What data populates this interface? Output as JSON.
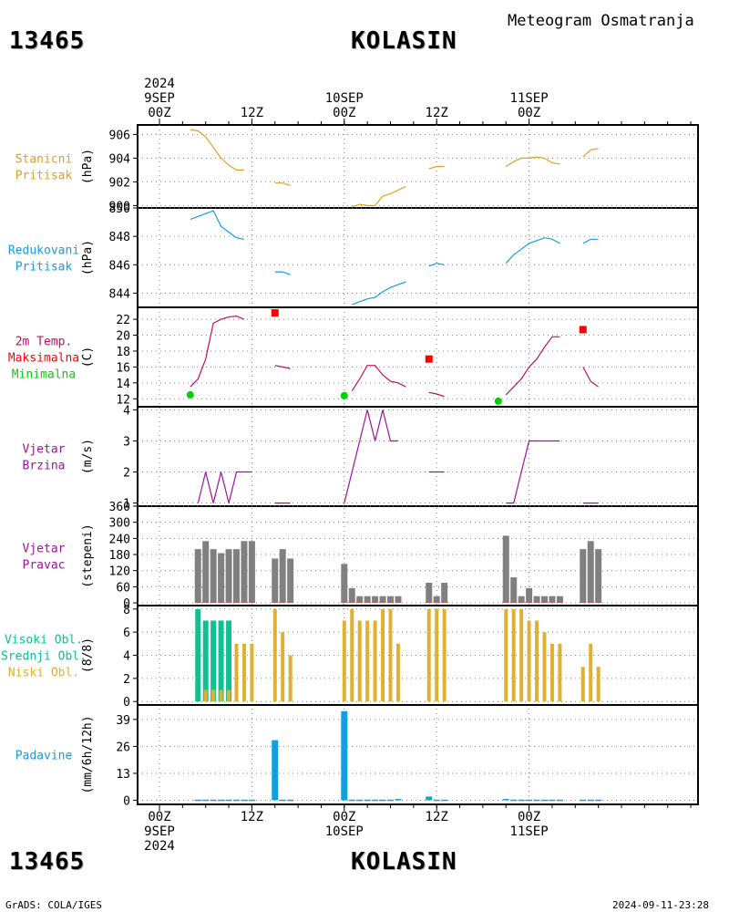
{
  "header": {
    "station_id": "13465",
    "station_name": "KOLASIN",
    "product_title": "Meteogram Osmatranja"
  },
  "footer": {
    "station_id": "13465",
    "station_name": "KOLASIN",
    "credit": "GrADS: COLA/IGES",
    "timestamp": "2024-09-11-23:28"
  },
  "time_axis": {
    "top_year": "2024",
    "bottom_year": "2024",
    "day_labels": [
      "9SEP",
      "10SEP",
      "11SEP"
    ],
    "tick_labels": [
      "00Z",
      "12Z",
      "00Z",
      "12Z",
      "00Z",
      "12Z"
    ]
  },
  "colors": {
    "pressure_station": "#e0a020",
    "pressure_reduced": "#10a0e0",
    "temp_line": "#c0105a",
    "temp_max": "#ff0000",
    "temp_min": "#00d000",
    "wind": "#a010a0",
    "wind_dir_bar": "#808080",
    "wind_dir_base": "#e05050",
    "cloud_high": "#10c090",
    "cloud_mid": "#40c040",
    "cloud_low": "#e0b030",
    "precip": "#10a0e0"
  },
  "chart_data": [
    {
      "type": "line",
      "id": "station_pressure",
      "legend": [
        "Stanicni",
        "Pritisak"
      ],
      "ylabel": "(hPa)",
      "ylim": [
        899.8,
        906.8
      ],
      "yticks": [
        900,
        902,
        904,
        906
      ],
      "x_unit": "hours_since_2024-09-09T00Z",
      "segments": [
        [
          [
            4,
            906.4
          ],
          [
            5,
            906.3
          ],
          [
            6,
            905.8
          ],
          [
            7,
            904.9
          ],
          [
            8,
            904.0
          ],
          [
            9,
            903.4
          ],
          [
            10,
            903.0
          ],
          [
            11,
            903.0
          ]
        ],
        [
          [
            15,
            901.9
          ],
          [
            16,
            901.9
          ],
          [
            17,
            901.7
          ]
        ],
        [
          [
            25,
            899.9
          ],
          [
            26,
            900.1
          ],
          [
            27,
            900.0
          ],
          [
            28,
            900.0
          ],
          [
            29,
            900.8
          ],
          [
            30,
            901.0
          ],
          [
            31,
            901.3
          ],
          [
            32,
            901.6
          ]
        ],
        [
          [
            35,
            903.1
          ],
          [
            36,
            903.3
          ],
          [
            37,
            903.3
          ]
        ],
        [
          [
            45,
            903.3
          ],
          [
            46,
            903.7
          ],
          [
            47,
            904.0
          ],
          [
            48,
            904.0
          ],
          [
            49,
            904.1
          ],
          [
            50,
            904.0
          ],
          [
            51,
            903.6
          ],
          [
            52,
            903.5
          ]
        ],
        [
          [
            55,
            904.1
          ],
          [
            56,
            904.7
          ],
          [
            57,
            904.8
          ]
        ]
      ]
    },
    {
      "type": "line",
      "id": "reduced_pressure",
      "legend": [
        "Redukovani",
        "Pritisak"
      ],
      "ylabel": "(hPa)",
      "ylim": [
        843.0,
        850.0
      ],
      "yticks": [
        844,
        846,
        848,
        850
      ],
      "x_unit": "hours_since_2024-09-09T00Z",
      "segments": [
        [
          [
            4,
            849.2
          ],
          [
            5,
            849.4
          ],
          [
            6,
            849.6
          ],
          [
            7,
            849.8
          ],
          [
            8,
            848.7
          ],
          [
            9,
            848.3
          ],
          [
            10,
            847.9
          ],
          [
            11,
            847.8
          ]
        ],
        [
          [
            15,
            845.5
          ],
          [
            16,
            845.5
          ],
          [
            17,
            845.3
          ]
        ],
        [
          [
            25,
            843.2
          ],
          [
            26,
            843.4
          ],
          [
            27,
            843.6
          ],
          [
            28,
            843.7
          ],
          [
            29,
            844.1
          ],
          [
            30,
            844.4
          ],
          [
            31,
            844.6
          ],
          [
            32,
            844.8
          ]
        ],
        [
          [
            35,
            845.9
          ],
          [
            36,
            846.1
          ],
          [
            37,
            846.0
          ]
        ],
        [
          [
            45,
            846.1
          ],
          [
            46,
            846.7
          ],
          [
            47,
            847.1
          ],
          [
            48,
            847.5
          ],
          [
            49,
            847.7
          ],
          [
            50,
            847.9
          ],
          [
            51,
            847.8
          ],
          [
            52,
            847.5
          ]
        ],
        [
          [
            55,
            847.5
          ],
          [
            56,
            847.8
          ],
          [
            57,
            847.8
          ]
        ]
      ]
    },
    {
      "type": "line",
      "id": "temperature",
      "legend": [
        "2m Temp.",
        "Maksimalna",
        "Minimalna"
      ],
      "ylabel": "(C)",
      "ylim": [
        11.0,
        23.5
      ],
      "yticks": [
        12,
        14,
        16,
        18,
        20,
        22
      ],
      "x_unit": "hours_since_2024-09-09T00Z",
      "segments": [
        [
          [
            4,
            13.5
          ],
          [
            5,
            14.5
          ],
          [
            6,
            17.0
          ],
          [
            7,
            21.5
          ],
          [
            8,
            22.0
          ],
          [
            9,
            22.3
          ],
          [
            10,
            22.4
          ],
          [
            11,
            22.0
          ]
        ],
        [
          [
            15,
            16.2
          ],
          [
            16,
            16.0
          ],
          [
            17,
            15.8
          ]
        ],
        [
          [
            25,
            13.0
          ],
          [
            26,
            14.5
          ],
          [
            27,
            16.2
          ],
          [
            28,
            16.2
          ],
          [
            29,
            15.0
          ],
          [
            30,
            14.2
          ],
          [
            31,
            14.0
          ],
          [
            32,
            13.5
          ]
        ],
        [
          [
            35,
            12.8
          ],
          [
            36,
            12.6
          ],
          [
            37,
            12.3
          ]
        ],
        [
          [
            45,
            12.5
          ],
          [
            46,
            13.5
          ],
          [
            47,
            14.5
          ],
          [
            48,
            16.0
          ],
          [
            49,
            17.0
          ],
          [
            50,
            18.5
          ],
          [
            51,
            19.8
          ],
          [
            52,
            19.8
          ]
        ],
        [
          [
            55,
            16.0
          ],
          [
            56,
            14.2
          ],
          [
            57,
            13.5
          ]
        ]
      ],
      "max_points": [
        [
          15,
          22.8
        ],
        [
          35,
          17.0
        ],
        [
          55,
          20.7
        ]
      ],
      "min_points": [
        [
          4,
          12.5
        ],
        [
          24,
          12.4
        ],
        [
          44,
          11.7
        ]
      ]
    },
    {
      "type": "line",
      "id": "wind_speed",
      "legend": [
        "Vjetar",
        "Brzina"
      ],
      "ylabel": "(m/s)",
      "ylim": [
        0.9,
        4.1
      ],
      "yticks": [
        1,
        2,
        3,
        4
      ],
      "x_unit": "hours_since_2024-09-09T00Z",
      "segments": [
        [
          [
            5,
            1
          ],
          [
            6,
            2
          ],
          [
            7,
            1
          ],
          [
            8,
            2
          ],
          [
            9,
            1
          ],
          [
            10,
            2
          ],
          [
            11,
            2
          ],
          [
            12,
            2
          ]
        ],
        [
          [
            15,
            1
          ],
          [
            16,
            1
          ],
          [
            17,
            1
          ]
        ],
        [
          [
            24,
            1
          ],
          [
            25,
            2
          ],
          [
            26,
            3
          ],
          [
            27,
            4
          ],
          [
            28,
            3
          ],
          [
            29,
            4
          ],
          [
            30,
            3
          ],
          [
            31,
            3
          ]
        ],
        [
          [
            35,
            2
          ],
          [
            36,
            2
          ],
          [
            37,
            2
          ]
        ],
        [
          [
            45,
            1
          ],
          [
            46,
            1
          ],
          [
            47,
            2
          ],
          [
            48,
            3
          ],
          [
            49,
            3
          ],
          [
            50,
            3
          ],
          [
            51,
            3
          ],
          [
            52,
            3
          ]
        ],
        [
          [
            55,
            1
          ],
          [
            56,
            1
          ],
          [
            57,
            1
          ]
        ]
      ]
    },
    {
      "type": "bar",
      "id": "wind_direction",
      "legend": [
        "Vjetar",
        "Pravac"
      ],
      "ylabel": "(stepeni)",
      "ylim": [
        -10,
        360
      ],
      "yticks": [
        0,
        60,
        120,
        180,
        240,
        300,
        360
      ],
      "x_unit": "hours_since_2024-09-09T00Z",
      "bars": [
        [
          5,
          200
        ],
        [
          6,
          230
        ],
        [
          7,
          200
        ],
        [
          8,
          185
        ],
        [
          9,
          200
        ],
        [
          10,
          200
        ],
        [
          11,
          230
        ],
        [
          12,
          230
        ],
        [
          15,
          165
        ],
        [
          16,
          200
        ],
        [
          17,
          165
        ],
        [
          24,
          145
        ],
        [
          25,
          55
        ],
        [
          26,
          25
        ],
        [
          27,
          25
        ],
        [
          28,
          25
        ],
        [
          29,
          25
        ],
        [
          30,
          25
        ],
        [
          31,
          25
        ],
        [
          35,
          75
        ],
        [
          36,
          25
        ],
        [
          37,
          75
        ],
        [
          45,
          250
        ],
        [
          46,
          95
        ],
        [
          47,
          25
        ],
        [
          48,
          55
        ],
        [
          49,
          25
        ],
        [
          50,
          25
        ],
        [
          51,
          25
        ],
        [
          52,
          25
        ],
        [
          55,
          200
        ],
        [
          56,
          230
        ],
        [
          57,
          200
        ]
      ]
    },
    {
      "type": "bar",
      "id": "cloud_cover",
      "legend": [
        "Visoki Obl.",
        "Srednji Obl.",
        "Niski Obl."
      ],
      "ylabel": "(8/8)",
      "ylim": [
        -0.3,
        8.3
      ],
      "yticks": [
        0,
        2,
        4,
        6,
        8
      ],
      "x_unit": "hours_since_2024-09-09T00Z",
      "series": [
        {
          "name": "Visoki Obl.",
          "points": [
            [
              5,
              8
            ],
            [
              6,
              7
            ],
            [
              7,
              7
            ],
            [
              8,
              7
            ],
            [
              9,
              7
            ]
          ]
        },
        {
          "name": "Srednji Obl.",
          "points": [
            [
              11,
              3
            ],
            [
              12,
              3
            ],
            [
              16,
              2
            ],
            [
              17,
              4
            ],
            [
              31,
              3
            ]
          ]
        },
        {
          "name": "Niski Obl.",
          "points": [
            [
              6,
              1
            ],
            [
              7,
              1
            ],
            [
              8,
              1
            ],
            [
              9,
              1
            ],
            [
              10,
              5
            ],
            [
              11,
              5
            ],
            [
              12,
              5
            ],
            [
              15,
              8
            ],
            [
              16,
              6
            ],
            [
              17,
              4
            ],
            [
              24,
              7
            ],
            [
              25,
              8
            ],
            [
              26,
              7
            ],
            [
              27,
              7
            ],
            [
              28,
              7
            ],
            [
              29,
              8
            ],
            [
              30,
              8
            ],
            [
              31,
              5
            ],
            [
              35,
              8
            ],
            [
              36,
              8
            ],
            [
              37,
              8
            ],
            [
              45,
              8
            ],
            [
              46,
              8
            ],
            [
              47,
              8
            ],
            [
              48,
              7
            ],
            [
              49,
              7
            ],
            [
              50,
              6
            ],
            [
              51,
              5
            ],
            [
              52,
              5
            ],
            [
              55,
              3
            ],
            [
              56,
              5
            ],
            [
              57,
              3
            ]
          ]
        }
      ]
    },
    {
      "type": "bar",
      "id": "precipitation",
      "legend": [
        "Padavine"
      ],
      "ylabel": "(mm/6h/12h)",
      "ylim": [
        -2,
        46
      ],
      "yticks": [
        0,
        13,
        26,
        39
      ],
      "x_unit": "hours_since_2024-09-09T00Z",
      "bars": [
        [
          5,
          0.3
        ],
        [
          6,
          0.3
        ],
        [
          7,
          0.3
        ],
        [
          8,
          0.3
        ],
        [
          9,
          0.3
        ],
        [
          10,
          0.3
        ],
        [
          11,
          0.3
        ],
        [
          12,
          0.3
        ],
        [
          15,
          29
        ],
        [
          16,
          0.3
        ],
        [
          17,
          0.3
        ],
        [
          24,
          43
        ],
        [
          25,
          0.3
        ],
        [
          26,
          0.3
        ],
        [
          27,
          0.3
        ],
        [
          28,
          0.3
        ],
        [
          29,
          0.3
        ],
        [
          30,
          0.3
        ],
        [
          31,
          0.6
        ],
        [
          35,
          1.8
        ],
        [
          36,
          0.3
        ],
        [
          37,
          0.3
        ],
        [
          45,
          0.6
        ],
        [
          46,
          0.3
        ],
        [
          47,
          0.3
        ],
        [
          48,
          0.3
        ],
        [
          49,
          0.3
        ],
        [
          50,
          0.3
        ],
        [
          51,
          0.3
        ],
        [
          52,
          0.3
        ],
        [
          55,
          0.3
        ],
        [
          56,
          0.3
        ],
        [
          57,
          0.3
        ]
      ]
    }
  ]
}
